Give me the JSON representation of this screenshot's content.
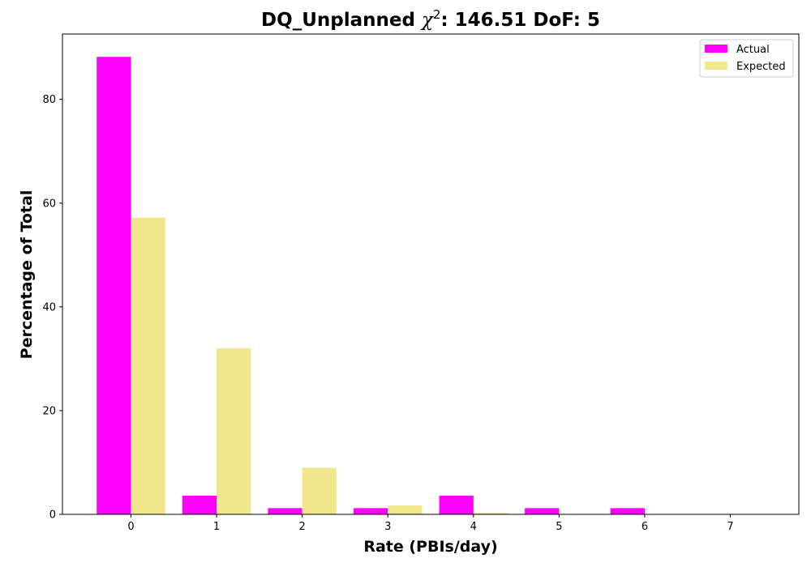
{
  "chart_data": {
    "type": "bar",
    "title_prefix": "DQ_Unplanned ",
    "title_chi": "χ",
    "title_sup": "2",
    "title_suffix": ": 146.51 DoF: 5",
    "xlabel": "Rate (PBIs/day)",
    "ylabel": "Percentage of Total",
    "categories": [
      "0",
      "1",
      "2",
      "3",
      "4",
      "5",
      "6",
      "7"
    ],
    "series": [
      {
        "name": "Actual",
        "color": "#ff00ff",
        "values": [
          88.2,
          3.6,
          1.2,
          1.2,
          3.6,
          1.2,
          1.2,
          0.0
        ]
      },
      {
        "name": "Expected",
        "color": "#f0e68c",
        "values": [
          57.2,
          32.0,
          9.0,
          1.7,
          0.3,
          0.0,
          0.0,
          0.0
        ]
      }
    ],
    "ylim": [
      0,
      92.6
    ],
    "yticks": [
      0,
      20,
      40,
      60,
      80
    ],
    "xlim": [
      -0.8,
      7.8
    ],
    "grid": false,
    "legend_position": "top-right"
  }
}
